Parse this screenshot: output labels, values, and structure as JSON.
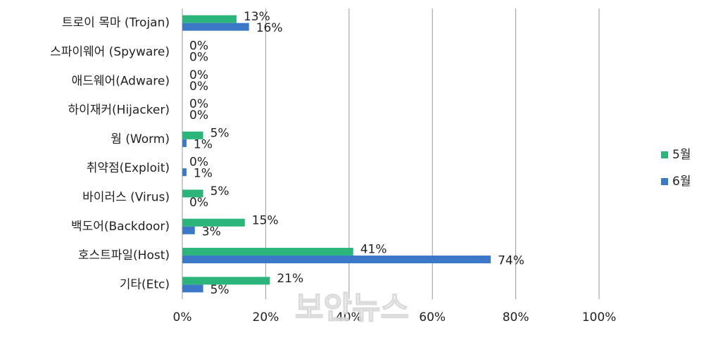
{
  "chart_data": {
    "type": "bar",
    "orientation": "horizontal",
    "categories": [
      "트로이 목마 (Trojan)",
      "스파이웨어 (Spyware)",
      "애드웨어(Adware)",
      "하이재커(Hijacker)",
      "웜 (Worm)",
      "취약점(Exploit)",
      "바이러스 (Virus)",
      "백도어(Backdoor)",
      "호스트파일(Host)",
      "기타(Etc)"
    ],
    "series": [
      {
        "name": "5월",
        "color": "#2bb57a",
        "values": [
          13,
          0,
          0,
          0,
          5,
          0,
          5,
          15,
          41,
          21
        ],
        "value_labels": [
          "13%",
          "0%",
          "0%",
          "0%",
          "5%",
          "0%",
          "5%",
          "15%",
          "41%",
          "21%"
        ]
      },
      {
        "name": "6월",
        "color": "#3b78c8",
        "values": [
          16,
          0,
          0,
          0,
          1,
          1,
          0,
          3,
          74,
          5
        ],
        "value_labels": [
          "16%",
          "0%",
          "0%",
          "0%",
          "1%",
          "1%",
          "0%",
          "3%",
          "74%",
          "5%"
        ]
      }
    ],
    "xlim": [
      0,
      100
    ],
    "xticks": [
      {
        "value": 0,
        "label": "0%"
      },
      {
        "value": 20,
        "label": "20%"
      },
      {
        "value": 40,
        "label": "40%"
      },
      {
        "value": 60,
        "label": "60%"
      },
      {
        "value": 80,
        "label": "80%"
      },
      {
        "value": 100,
        "label": "100%"
      }
    ],
    "grid": true,
    "legend": "right",
    "watermark": "보안뉴스"
  }
}
